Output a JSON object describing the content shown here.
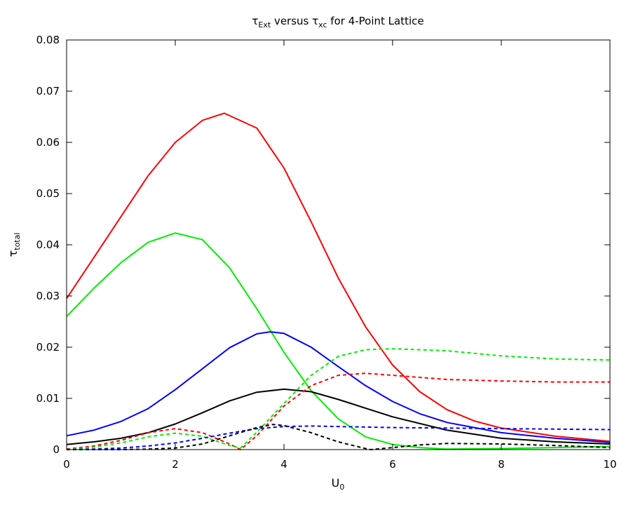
{
  "chart_data": {
    "type": "line",
    "title": {
      "base1": "τ",
      "sub1": "Ext",
      "mid": " versus ",
      "base2": "τ",
      "sub2": "xc",
      "rest": " for 4-Point Lattice"
    },
    "xlabel": {
      "base": "U",
      "sub": "0"
    },
    "ylabel": {
      "base": "τ",
      "sub": "total"
    },
    "xlim": [
      0,
      10
    ],
    "ylim": [
      0,
      0.08
    ],
    "x_ticks": [
      0,
      2,
      4,
      6,
      8,
      10
    ],
    "x_tick_labels": [
      "0",
      "2",
      "4",
      "6",
      "8",
      "10"
    ],
    "y_ticks": [
      0,
      0.01,
      0.02,
      0.03,
      0.04,
      0.05,
      0.06,
      0.07,
      0.08
    ],
    "y_tick_labels": [
      "0",
      "0.01",
      "0.02",
      "0.03",
      "0.04",
      "0.05",
      "0.06",
      "0.07",
      "0.08"
    ],
    "grid": false,
    "series": [
      {
        "color": "#ff0000",
        "dash": false,
        "x": [
          0,
          0.5,
          1,
          1.5,
          2,
          2.5,
          2.9,
          3.5,
          4,
          4.5,
          5,
          5.5,
          6,
          6.5,
          7,
          7.5,
          8,
          9,
          10
        ],
        "y": [
          0.0295,
          0.0375,
          0.0455,
          0.0535,
          0.06,
          0.0643,
          0.0657,
          0.0628,
          0.055,
          0.0445,
          0.0335,
          0.024,
          0.0165,
          0.0113,
          0.0078,
          0.0056,
          0.0042,
          0.0026,
          0.0016
        ]
      },
      {
        "color": "#00ee00",
        "dash": false,
        "x": [
          0,
          0.5,
          1,
          1.5,
          2,
          2.5,
          3,
          3.5,
          4,
          4.5,
          5,
          5.5,
          6,
          6.5,
          7,
          8,
          10
        ],
        "y": [
          0.026,
          0.0315,
          0.0365,
          0.0405,
          0.0423,
          0.041,
          0.0355,
          0.0275,
          0.019,
          0.0115,
          0.006,
          0.0025,
          0.001,
          0.0004,
          0.0001,
          0.0002,
          0.0006
        ]
      },
      {
        "color": "#0000ff",
        "dash": false,
        "x": [
          0,
          0.5,
          1,
          1.5,
          2,
          2.5,
          3,
          3.5,
          3.75,
          4,
          4.5,
          5,
          5.5,
          6,
          6.5,
          7,
          8,
          9,
          10
        ],
        "y": [
          0.0027,
          0.0038,
          0.0055,
          0.008,
          0.0117,
          0.0158,
          0.0199,
          0.0226,
          0.023,
          0.0227,
          0.02,
          0.0162,
          0.0125,
          0.0094,
          0.007,
          0.0053,
          0.0033,
          0.0022,
          0.0014
        ]
      },
      {
        "color": "#000000",
        "dash": false,
        "x": [
          0,
          0.5,
          1,
          1.5,
          2,
          2.5,
          3,
          3.5,
          4,
          4.5,
          5,
          5.5,
          6,
          7,
          8,
          9,
          10
        ],
        "y": [
          0.001,
          0.0015,
          0.0022,
          0.0033,
          0.005,
          0.0072,
          0.0095,
          0.0112,
          0.0118,
          0.0113,
          0.0098,
          0.0081,
          0.0064,
          0.0038,
          0.0022,
          0.0015,
          0.0011
        ]
      },
      {
        "color": "#ff0000",
        "dash": true,
        "x": [
          0,
          0.5,
          1,
          1.5,
          2,
          2.5,
          3,
          3.2,
          3.5,
          4,
          4.5,
          5,
          5.5,
          6,
          7,
          8,
          9,
          10
        ],
        "y": [
          0.0001,
          0.0007,
          0.0018,
          0.0033,
          0.0041,
          0.0033,
          0.0011,
          0,
          0.0027,
          0.0085,
          0.0125,
          0.0145,
          0.0149,
          0.0145,
          0.0137,
          0.0134,
          0.0132,
          0.0132
        ]
      },
      {
        "color": "#00ee00",
        "dash": true,
        "x": [
          0,
          0.5,
          1,
          1.5,
          2,
          2.5,
          3,
          3.2,
          3.5,
          4,
          4.5,
          5,
          5.5,
          6,
          7,
          8,
          9,
          10
        ],
        "y": [
          0,
          0.0005,
          0.0013,
          0.0025,
          0.0032,
          0.0026,
          0.0008,
          0.0003,
          0.0034,
          0.009,
          0.0145,
          0.0182,
          0.0195,
          0.0197,
          0.0193,
          0.0183,
          0.0177,
          0.0175
        ]
      },
      {
        "color": "#0000ff",
        "dash": true,
        "x": [
          0,
          0.5,
          1,
          1.5,
          2,
          2.5,
          3,
          3.5,
          4,
          4.5,
          5,
          6,
          7,
          8,
          9,
          10
        ],
        "y": [
          0,
          0.0001,
          0.0003,
          0.0007,
          0.0013,
          0.0022,
          0.0032,
          0.0041,
          0.0045,
          0.0046,
          0.0045,
          0.0043,
          0.0042,
          0.0041,
          0.004,
          0.0039
        ]
      },
      {
        "color": "#000000",
        "dash": true,
        "x": [
          0,
          0.5,
          1,
          1.5,
          2,
          2.5,
          3,
          3.5,
          3.8,
          4,
          4.5,
          5,
          5.5,
          5.6,
          6,
          6.5,
          7,
          8,
          9,
          10
        ],
        "y": [
          0,
          0,
          0,
          0.0001,
          0.0003,
          0.0011,
          0.0027,
          0.0043,
          0.0049,
          0.0047,
          0.0033,
          0.0015,
          0.0002,
          0,
          0.0004,
          0.0009,
          0.0012,
          0.0011,
          0.0008,
          0.0004
        ]
      }
    ]
  }
}
